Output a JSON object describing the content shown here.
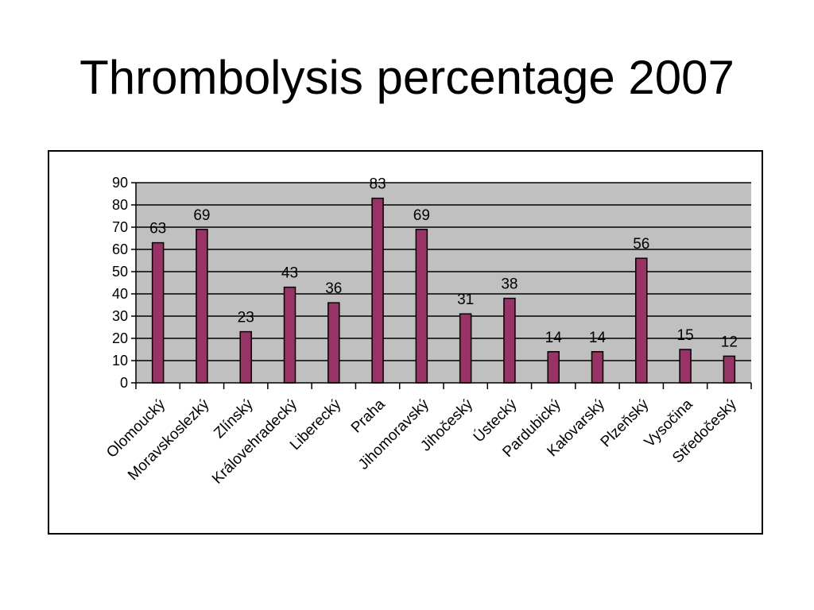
{
  "title": "Thrombolysis percentage 2007",
  "colors": {
    "bar_fill": "#993366",
    "bar_stroke": "#000000",
    "plot_background": "#c0c0c0",
    "gridline": "#000000"
  },
  "chart_data": {
    "type": "bar",
    "title": "Thrombolysis percentage 2007",
    "categories": [
      "Olomoucký",
      "Moravskoslezký",
      "Zlínský",
      "Královehradecký",
      "Liberecký",
      "Praha",
      "Jihomoravský",
      "Jihočeský",
      "Ústecký",
      "Pardubický",
      "Kałovarský",
      "Plzeňský",
      "Vysočina",
      "Středočeský"
    ],
    "values": [
      63,
      69,
      23,
      43,
      36,
      83,
      69,
      31,
      38,
      14,
      14,
      56,
      15,
      12
    ],
    "ylim": [
      0,
      90
    ],
    "yticks": [
      0,
      10,
      20,
      30,
      40,
      50,
      60,
      70,
      80,
      90
    ],
    "grid": true,
    "legend": "none",
    "xlabel": "",
    "ylabel": ""
  }
}
